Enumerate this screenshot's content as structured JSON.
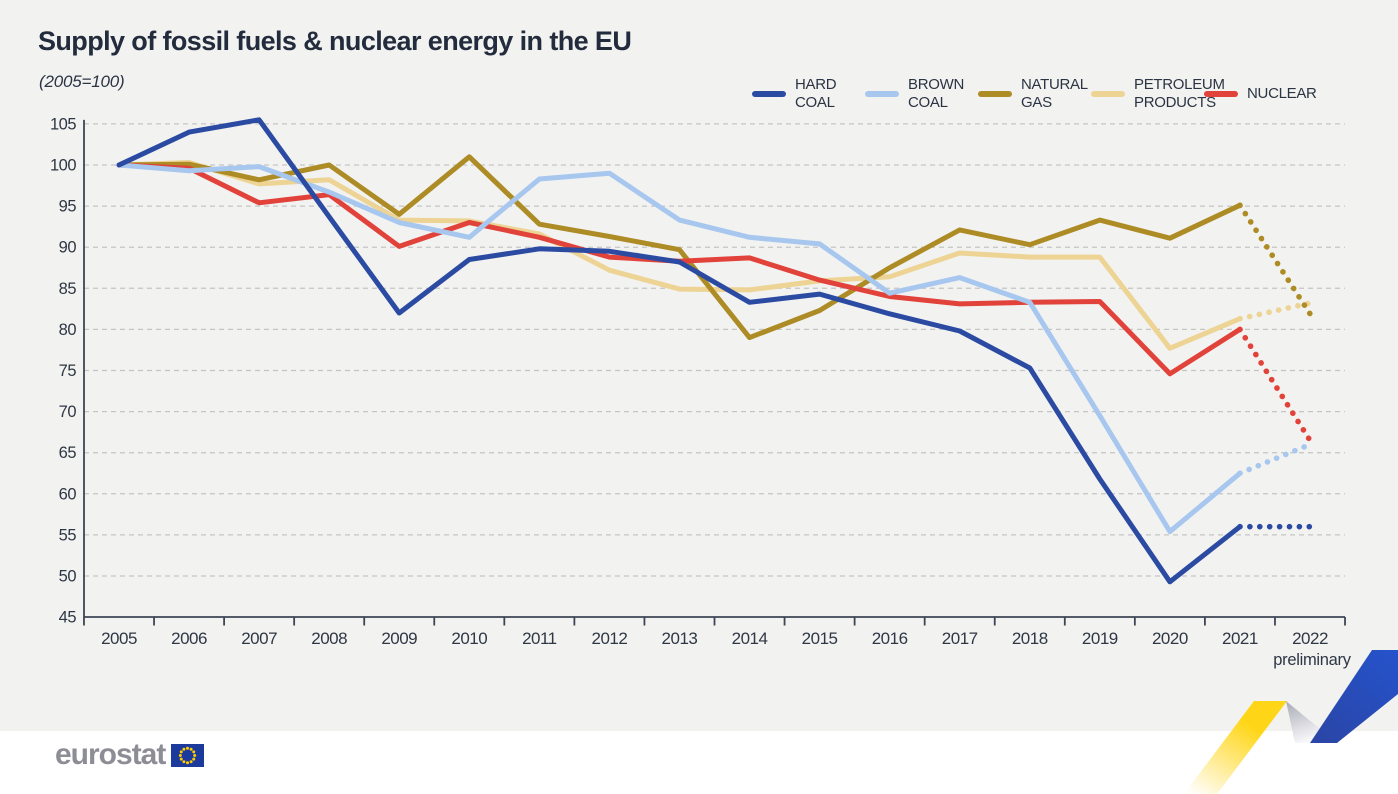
{
  "title": "Supply of fossil fuels & nuclear energy in the EU",
  "subtitle": "(2005=100)",
  "x_note": "preliminary",
  "footer": {
    "logo_text": "eurostat"
  },
  "colors": {
    "background": "#f2f2f1",
    "text": "#2e3744",
    "axis": "#3d4555",
    "grid": "#c5c5c5",
    "logo_gray": "#8d8d96",
    "flag_blue": "#1b3a9b",
    "flag_star_gold": "#ffcc00",
    "ribbon_yellow": "#ffd617",
    "ribbon_blue": "#2750c0",
    "ribbon_gray": "#b9b9c2"
  },
  "chart_data": {
    "type": "line",
    "title": "Supply of fossil fuels & nuclear energy in the EU",
    "subtitle": "(2005=100)",
    "x": [
      2005,
      2006,
      2007,
      2008,
      2009,
      2010,
      2011,
      2012,
      2013,
      2014,
      2015,
      2016,
      2017,
      2018,
      2019,
      2020,
      2021,
      2022
    ],
    "x_last_label_note": "preliminary",
    "ylim": [
      45,
      105
    ],
    "y_ticks": [
      105,
      100,
      95,
      90,
      85,
      80,
      75,
      70,
      65,
      60,
      55,
      50,
      45
    ],
    "grid": "horizontal dashed",
    "legend_position": "top-right",
    "final_segment_style": "dotted (2021 to 2022 preliminary)",
    "series": [
      {
        "name": "HARD\nCOAL",
        "color": "#2b4aa2",
        "values": [
          100,
          104,
          105.5,
          93.7,
          82,
          88.5,
          89.8,
          89.5,
          88.2,
          83.3,
          84.3,
          81.9,
          79.8,
          75.3,
          61.8,
          49.3,
          56,
          56
        ]
      },
      {
        "name": "BROWN\nCOAL",
        "color": "#a7c7ef",
        "values": [
          100,
          99.3,
          99.8,
          96.7,
          93,
          91.2,
          98.3,
          99,
          93.3,
          91.2,
          90.4,
          84.4,
          86.3,
          83.3,
          69.5,
          55.4,
          62.5,
          66
        ]
      },
      {
        "name": "NATURAL\nGAS",
        "color": "#ad8b25",
        "values": [
          100,
          100.1,
          98.2,
          100,
          94,
          101,
          92.8,
          91.3,
          89.7,
          79,
          82.3,
          87.5,
          92.1,
          90.3,
          93.3,
          91.1,
          95.1,
          81.9
        ]
      },
      {
        "name": "PETROLEUM\nPRODUCTS",
        "color": "#edd494",
        "values": [
          100,
          100.3,
          97.7,
          98.2,
          93.3,
          93.2,
          91.6,
          87.2,
          84.9,
          84.8,
          85.9,
          86.4,
          89.3,
          88.8,
          88.8,
          77.7,
          81.3,
          83.2
        ]
      },
      {
        "name": "NUCLEAR",
        "color": "#e1423a",
        "values": [
          100,
          99.6,
          95.4,
          96.4,
          90.1,
          93,
          91.2,
          88.8,
          88.3,
          88.7,
          86,
          84,
          83.1,
          83.3,
          83.4,
          74.6,
          80,
          66.5
        ]
      }
    ]
  }
}
